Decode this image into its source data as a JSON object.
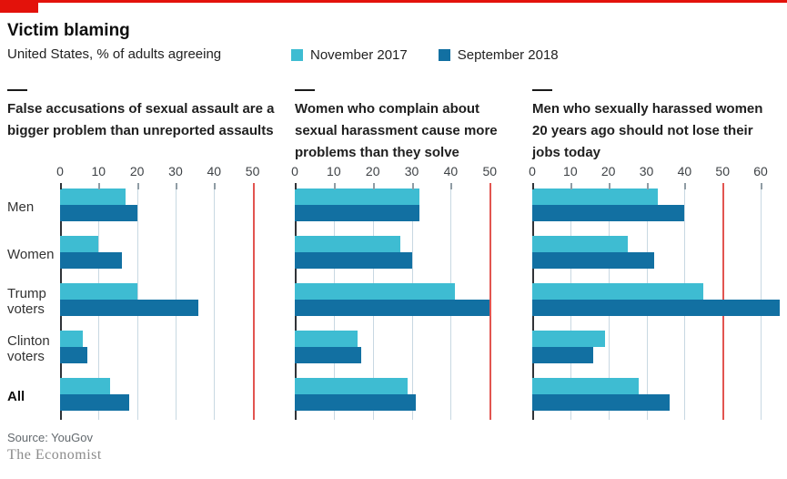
{
  "header": {
    "title": "Victim blaming",
    "subtitle": "United States, % of adults agreeing"
  },
  "legend": {
    "items": [
      {
        "label": "November 2017",
        "color": "#3ebcd2"
      },
      {
        "label": "September 2018",
        "color": "#1270a2"
      }
    ]
  },
  "categories": [
    "Men",
    "Women",
    "Trump voters",
    "Clinton voters",
    "All"
  ],
  "colors": {
    "accent_red": "#e3120b",
    "threshold_line_red": "#e25550",
    "series_2017_cyan": "#3ebcd2",
    "series_2018_blue": "#1270a2",
    "gridline": "#c8d8e2"
  },
  "footer": {
    "source": "Source: YouGov",
    "brand": "The Economist"
  },
  "chart_data": [
    {
      "type": "bar",
      "orientation": "horizontal",
      "title": "False accusations of sexual assault are a bigger problem than unreported assaults",
      "categories": [
        "Men",
        "Women",
        "Trump voters",
        "Clinton voters",
        "All"
      ],
      "ticks": [
        0,
        10,
        20,
        30,
        40,
        50
      ],
      "xlim": [
        0,
        56
      ],
      "threshold_line": 50,
      "grid": true,
      "series": [
        {
          "name": "November 2017",
          "values": [
            17,
            10,
            20,
            6,
            13
          ]
        },
        {
          "name": "September 2018",
          "values": [
            20,
            16,
            36,
            7,
            18
          ]
        }
      ]
    },
    {
      "type": "bar",
      "orientation": "horizontal",
      "title": "Women who complain about sexual harassment cause more problems than they solve",
      "categories": [
        "Men",
        "Women",
        "Trump voters",
        "Clinton voters",
        "All"
      ],
      "ticks": [
        0,
        10,
        20,
        30,
        40,
        50
      ],
      "xlim": [
        0,
        56
      ],
      "threshold_line": 50,
      "grid": true,
      "series": [
        {
          "name": "November 2017",
          "values": [
            32,
            27,
            41,
            16,
            29
          ]
        },
        {
          "name": "September 2018",
          "values": [
            32,
            30,
            50,
            17,
            31
          ]
        }
      ]
    },
    {
      "type": "bar",
      "orientation": "horizontal",
      "title": "Men who sexually harassed women 20 years ago should not lose their jobs today",
      "categories": [
        "Men",
        "Women",
        "Trump voters",
        "Clinton voters",
        "All"
      ],
      "ticks": [
        0,
        10,
        20,
        30,
        40,
        50,
        60
      ],
      "xlim": [
        0,
        65
      ],
      "threshold_line": 50,
      "grid": true,
      "series": [
        {
          "name": "November 2017",
          "values": [
            33,
            25,
            45,
            19,
            28
          ]
        },
        {
          "name": "September 2018",
          "values": [
            40,
            32,
            65,
            16,
            36
          ]
        }
      ]
    }
  ]
}
